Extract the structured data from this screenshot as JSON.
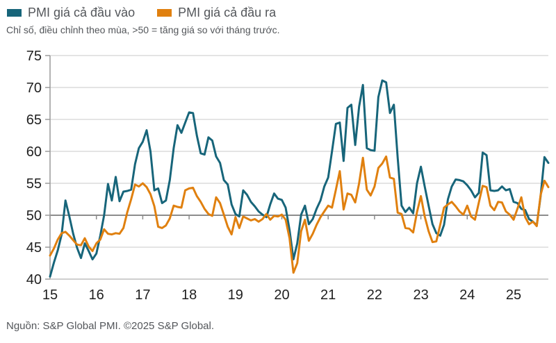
{
  "legend": {
    "items": [
      {
        "label": "PMI giá cả đầu vào",
        "color": "#17657a"
      },
      {
        "label": "PMI giá cả đầu ra",
        "color": "#e0800f"
      }
    ]
  },
  "subtitle": "Chỉ số, điều chỉnh theo mùa, >50 = tăng giá so với tháng trước.",
  "source": "Nguồn: S&P Global PMI. ©2025 S&P Global.",
  "chart_data": {
    "type": "line",
    "title": "",
    "xlabel": "",
    "ylabel": "",
    "frequency": "monthly",
    "x_start": "2015-01",
    "x_end": "2025-10",
    "x_tick_labels": [
      "15",
      "16",
      "17",
      "18",
      "19",
      "20",
      "21",
      "22",
      "23",
      "24",
      "25"
    ],
    "y_ticks": [
      40,
      45,
      50,
      55,
      60,
      65,
      70,
      75
    ],
    "ylim": [
      40,
      75
    ],
    "baseline": 50,
    "grid": "horizontal",
    "legend_position": "top-left",
    "colors": {
      "grid": "#c9c9c9",
      "bottom_line": "#bdbdbd",
      "baseline_line": "#8c8c8c",
      "axis": "#9a9a9a",
      "tick_label": "#1f1f1f"
    },
    "series": [
      {
        "name": "PMI giá cả đầu vào",
        "id": "input-prices-line",
        "color": "#17657a",
        "values": [
          40.4,
          42.6,
          44.5,
          47.0,
          52.3,
          49.8,
          47.1,
          44.9,
          43.3,
          45.6,
          44.4,
          43.1,
          44.0,
          46.8,
          50.0,
          54.9,
          52.3,
          56.0,
          52.2,
          53.7,
          53.8,
          54.0,
          58.0,
          60.5,
          61.5,
          63.3,
          60.0,
          53.9,
          54.2,
          51.9,
          52.3,
          55.5,
          60.5,
          64.1,
          62.9,
          64.5,
          66.1,
          66.0,
          62.5,
          59.7,
          59.5,
          62.2,
          61.7,
          59.2,
          58.2,
          55.5,
          54.8,
          51.7,
          50.2,
          49.8,
          53.9,
          53.2,
          52.1,
          51.4,
          50.6,
          50.1,
          49.7,
          51.7,
          53.4,
          52.6,
          52.4,
          51.2,
          47.7,
          43.1,
          45.6,
          50.1,
          51.5,
          48.6,
          49.4,
          51.0,
          52.3,
          54.5,
          55.9,
          60.0,
          64.3,
          64.5,
          58.5,
          66.8,
          67.3,
          61.0,
          67.0,
          70.4,
          60.5,
          60.2,
          60.1,
          68.5,
          71.1,
          70.8,
          66.0,
          67.3,
          59.0,
          51.5,
          50.5,
          51.2,
          50.3,
          55.0,
          57.6,
          54.5,
          51.5,
          48.6,
          47.2,
          46.8,
          48.5,
          52.5,
          54.5,
          55.6,
          55.5,
          55.3,
          54.7,
          53.9,
          52.8,
          53.5,
          59.8,
          59.4,
          53.9,
          53.8,
          53.9,
          54.5,
          53.9,
          54.1,
          52.1,
          51.9,
          51.0,
          50.8,
          49.4,
          49.0,
          48.4,
          53.0,
          59.1,
          58.2
        ]
      },
      {
        "name": "PMI giá cả đầu ra",
        "id": "output-prices-line",
        "color": "#e0800f",
        "values": [
          43.7,
          44.8,
          46.2,
          47.2,
          47.4,
          46.8,
          46.1,
          45.4,
          45.3,
          46.4,
          45.1,
          44.4,
          45.6,
          46.2,
          47.8,
          47.1,
          47.0,
          47.2,
          47.1,
          48.0,
          50.5,
          52.5,
          54.8,
          54.5,
          55.0,
          54.4,
          53.3,
          51.4,
          48.2,
          48.0,
          48.4,
          49.5,
          51.5,
          51.3,
          51.2,
          53.9,
          54.2,
          54.3,
          53.0,
          52.1,
          51.0,
          50.2,
          49.9,
          52.8,
          51.9,
          50.1,
          48.2,
          47.0,
          49.7,
          48.0,
          49.8,
          49.5,
          49.2,
          49.4,
          49.0,
          49.4,
          50.2,
          49.3,
          49.9,
          49.8,
          50.1,
          49.3,
          46.4,
          41.0,
          42.5,
          47.5,
          49.3,
          46.0,
          47.1,
          48.5,
          49.7,
          50.6,
          51.5,
          51.2,
          54.0,
          56.9,
          50.9,
          53.4,
          53.2,
          52.0,
          55.0,
          59.0,
          54.0,
          53.1,
          54.5,
          57.4,
          58.1,
          59.2,
          55.9,
          55.7,
          50.4,
          50.2,
          48.0,
          47.9,
          47.3,
          50.5,
          53.0,
          49.8,
          47.5,
          45.8,
          45.9,
          48.5,
          51.2,
          51.7,
          52.1,
          51.4,
          50.6,
          50.1,
          51.5,
          49.8,
          49.3,
          52.0,
          54.6,
          54.4,
          51.5,
          50.8,
          52.1,
          52.0,
          50.6,
          50.1,
          49.3,
          51.0,
          52.8,
          49.7,
          48.6,
          49.0,
          48.3,
          53.2,
          55.4,
          54.4
        ]
      }
    ]
  }
}
